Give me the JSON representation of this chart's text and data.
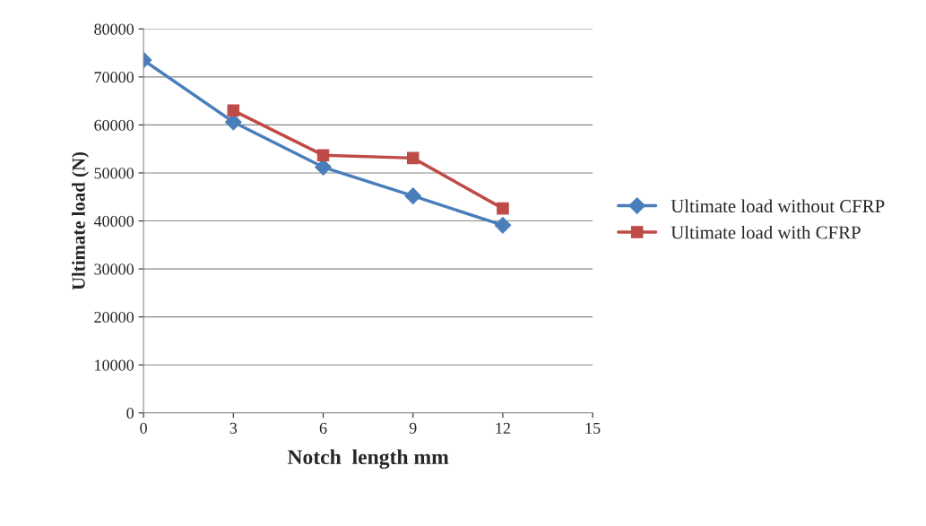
{
  "chart_data": {
    "type": "line",
    "xlabel": "Notch  length mm",
    "ylabel": "Ultimate load (N)",
    "x": [
      0,
      3,
      6,
      9,
      12
    ],
    "series": [
      {
        "name": "Ultimate load without CFRP",
        "color": "#4a7ebb",
        "marker": "diamond",
        "values": [
          73500,
          60600,
          51200,
          45200,
          39100
        ]
      },
      {
        "name": "Ultimate load with CFRP",
        "color": "#be4b48",
        "marker": "square",
        "x": [
          3,
          6,
          9,
          12
        ],
        "values": [
          63000,
          53700,
          53100,
          42600
        ]
      }
    ],
    "xlim": [
      0,
      15
    ],
    "xticks": [
      0,
      3,
      6,
      9,
      12,
      15
    ],
    "ylim": [
      0,
      80000
    ],
    "yticks": [
      0,
      10000,
      20000,
      30000,
      40000,
      50000,
      60000,
      70000,
      80000
    ],
    "grid": "y",
    "legend": "right"
  }
}
